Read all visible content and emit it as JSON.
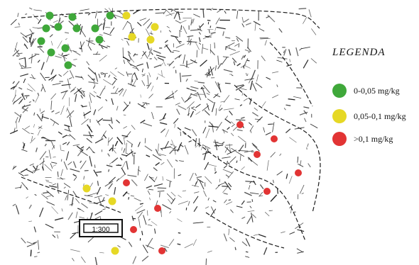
{
  "map": {
    "colors": {
      "low": "#3fa83a",
      "mid": "#e6d825",
      "high": "#e23434",
      "ink": "#1c1c1c"
    }
  },
  "legend": {
    "title": "LEGENDA",
    "items": [
      {
        "label": "0-0,05 mg/kg",
        "color": "#3fa83a"
      },
      {
        "label": "0,05-0,1 mg/kg",
        "color": "#e6d825"
      },
      {
        "label": ">0,1 mg/kg",
        "color": "#e23434"
      }
    ]
  },
  "scale_box_label": "1:300"
}
